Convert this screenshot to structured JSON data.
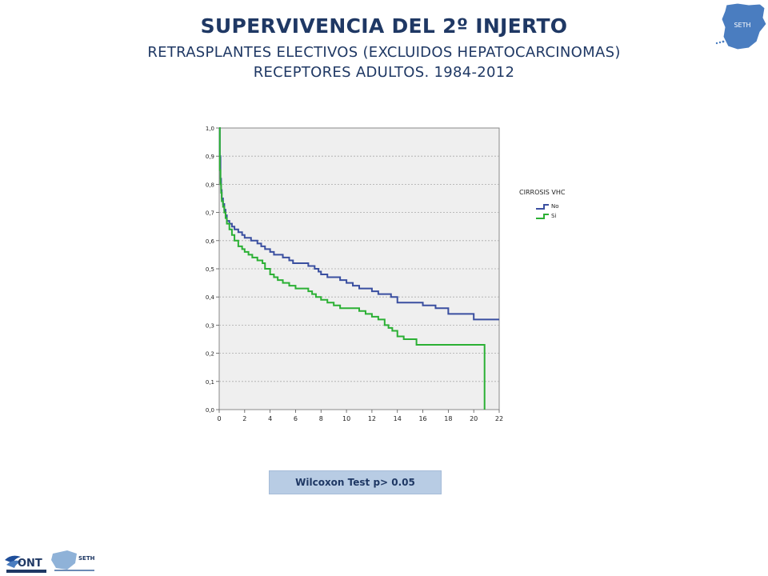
{
  "header": {
    "title": "SUPERVIVENCIA DEL 2º INJERTO",
    "subtitle_line1": "RETRASPLANTES ELECTIVOS (EXCLUIDOS HEPATOCARCINOMAS)",
    "subtitle_line2": "RECEPTORES ADULTOS. 1984-2012"
  },
  "logos": {
    "map_label": "SETH",
    "ont_label": "ONT",
    "seth_label": "SETH"
  },
  "footer": {
    "test_label": "Wilcoxon Test  p> 0.05"
  },
  "colors": {
    "title": "#1f3864",
    "series_no": "#3a4fa0",
    "series_si": "#2bb034",
    "plot_bg": "#efefef",
    "test_box": "#b8cce4"
  },
  "chart_data": {
    "type": "line",
    "step": true,
    "xlim": [
      0,
      22
    ],
    "ylim": [
      0,
      1
    ],
    "x_ticks": [
      "0",
      "2",
      "4",
      "6",
      "8",
      "10",
      "12",
      "14",
      "16",
      "18",
      "20",
      "22"
    ],
    "y_ticks": [
      "0,0",
      "0,1",
      "0,2",
      "0,3",
      "0,4",
      "0,5",
      "0,6",
      "0,7",
      "0,8",
      "0,9",
      "1,0"
    ],
    "grid": "horizontal dashed",
    "legend_title": "CIRROSIS VHC",
    "legend_position": "right",
    "series": [
      {
        "name": "No",
        "color": "#3a4fa0",
        "x": [
          0,
          0.05,
          0.1,
          0.15,
          0.2,
          0.3,
          0.4,
          0.5,
          0.6,
          0.8,
          1.0,
          1.2,
          1.5,
          1.8,
          2.0,
          2.5,
          3.0,
          3.3,
          3.6,
          4.0,
          4.3,
          4.6,
          5.0,
          5.5,
          5.8,
          6.3,
          7.0,
          7.5,
          7.8,
          8.0,
          8.5,
          9.0,
          9.5,
          10.0,
          10.5,
          11.0,
          12.0,
          12.5,
          13.0,
          13.5,
          14.0,
          15.0,
          16.0,
          17.0,
          18.0,
          20.0,
          22.0
        ],
        "y": [
          1.0,
          0.9,
          0.82,
          0.78,
          0.75,
          0.73,
          0.71,
          0.69,
          0.67,
          0.66,
          0.65,
          0.64,
          0.63,
          0.62,
          0.61,
          0.6,
          0.59,
          0.58,
          0.57,
          0.56,
          0.55,
          0.55,
          0.54,
          0.53,
          0.52,
          0.52,
          0.51,
          0.5,
          0.49,
          0.48,
          0.47,
          0.47,
          0.46,
          0.45,
          0.44,
          0.43,
          0.42,
          0.41,
          0.41,
          0.4,
          0.38,
          0.38,
          0.37,
          0.36,
          0.34,
          0.32,
          0.32
        ]
      },
      {
        "name": "Si",
        "color": "#2bb034",
        "x": [
          0,
          0.05,
          0.1,
          0.15,
          0.2,
          0.3,
          0.4,
          0.5,
          0.6,
          0.8,
          1.0,
          1.2,
          1.5,
          1.8,
          2.0,
          2.3,
          2.6,
          3.0,
          3.4,
          3.6,
          4.0,
          4.3,
          4.6,
          5.0,
          5.5,
          6.0,
          6.5,
          7.0,
          7.3,
          7.6,
          8.0,
          8.5,
          9.0,
          9.5,
          10.0,
          11.0,
          11.5,
          12.0,
          12.5,
          13.0,
          13.3,
          13.6,
          14.0,
          14.5,
          15.0,
          15.5,
          16.0,
          20.8,
          20.85
        ],
        "y": [
          1.0,
          0.85,
          0.8,
          0.77,
          0.74,
          0.72,
          0.7,
          0.68,
          0.66,
          0.64,
          0.62,
          0.6,
          0.58,
          0.57,
          0.56,
          0.55,
          0.54,
          0.53,
          0.52,
          0.5,
          0.48,
          0.47,
          0.46,
          0.45,
          0.44,
          0.43,
          0.43,
          0.42,
          0.41,
          0.4,
          0.39,
          0.38,
          0.37,
          0.36,
          0.36,
          0.35,
          0.34,
          0.33,
          0.32,
          0.3,
          0.29,
          0.28,
          0.26,
          0.25,
          0.25,
          0.23,
          0.23,
          0.23,
          0.0
        ]
      }
    ]
  }
}
